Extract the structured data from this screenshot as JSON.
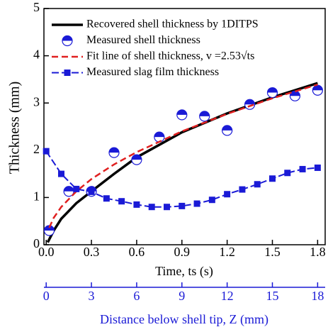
{
  "chart_data": {
    "type": "line",
    "x_label": "Time, ts (s)",
    "y_label": "Thickness (mm)",
    "x2_label": "Distance below shell tip, Z (mm)",
    "xlim": [
      -0.015,
      1.85
    ],
    "xticks": [
      {
        "value": 0,
        "label": "0.0"
      },
      0.3,
      0.6,
      0.9,
      1.2,
      1.5,
      1.8
    ],
    "ylim": [
      0,
      5
    ],
    "yticks": [
      0,
      1,
      2,
      3,
      4,
      5
    ],
    "x2lim": [
      -0.15,
      18.5
    ],
    "x2ticks": [
      0,
      3,
      6,
      9,
      12,
      15,
      18
    ],
    "x2_color": "#1a1ad6",
    "legend": "upper left",
    "series": [
      {
        "name": "Recovered shell thickness by 1DITPS",
        "style": "solid",
        "color": "#000000",
        "x": [
          0.01,
          0.05,
          0.1,
          0.2,
          0.3,
          0.45,
          0.6,
          0.9,
          1.2,
          1.5,
          1.8
        ],
        "values": [
          0.05,
          0.3,
          0.55,
          0.88,
          1.13,
          1.5,
          1.85,
          2.38,
          2.78,
          3.12,
          3.42
        ]
      },
      {
        "name": "Measured shell thickness",
        "style": "halfcircle",
        "color": "#1a1ad6",
        "x": [
          0.02,
          0.15,
          0.3,
          0.45,
          0.6,
          0.75,
          0.9,
          1.05,
          1.2,
          1.35,
          1.5,
          1.65,
          1.8
        ],
        "values": [
          0.3,
          1.13,
          1.13,
          1.95,
          1.8,
          2.28,
          2.75,
          2.72,
          2.42,
          2.97,
          3.22,
          3.15,
          3.27
        ]
      },
      {
        "name": "Fit line of shell thickness, v =2.53√ts",
        "style": "dashed",
        "color": "#e02020",
        "x": [
          0.02,
          0.05,
          0.1,
          0.2,
          0.3,
          0.45,
          0.6,
          0.9,
          1.2,
          1.5,
          1.8
        ],
        "values": [
          0.36,
          0.57,
          0.8,
          1.13,
          1.39,
          1.7,
          1.96,
          2.4,
          2.77,
          3.1,
          3.39
        ]
      },
      {
        "name": "Measured slag film thickness",
        "style": "dashsquare",
        "color": "#1a1ad6",
        "x": [
          0,
          0.1,
          0.2,
          0.3,
          0.4,
          0.5,
          0.6,
          0.7,
          0.8,
          0.9,
          1.0,
          1.1,
          1.2,
          1.3,
          1.4,
          1.5,
          1.6,
          1.7,
          1.8
        ],
        "values": [
          1.98,
          1.5,
          1.18,
          1.12,
          0.98,
          0.92,
          0.85,
          0.8,
          0.8,
          0.82,
          0.87,
          0.95,
          1.07,
          1.17,
          1.28,
          1.4,
          1.52,
          1.6,
          1.63
        ]
      }
    ]
  }
}
